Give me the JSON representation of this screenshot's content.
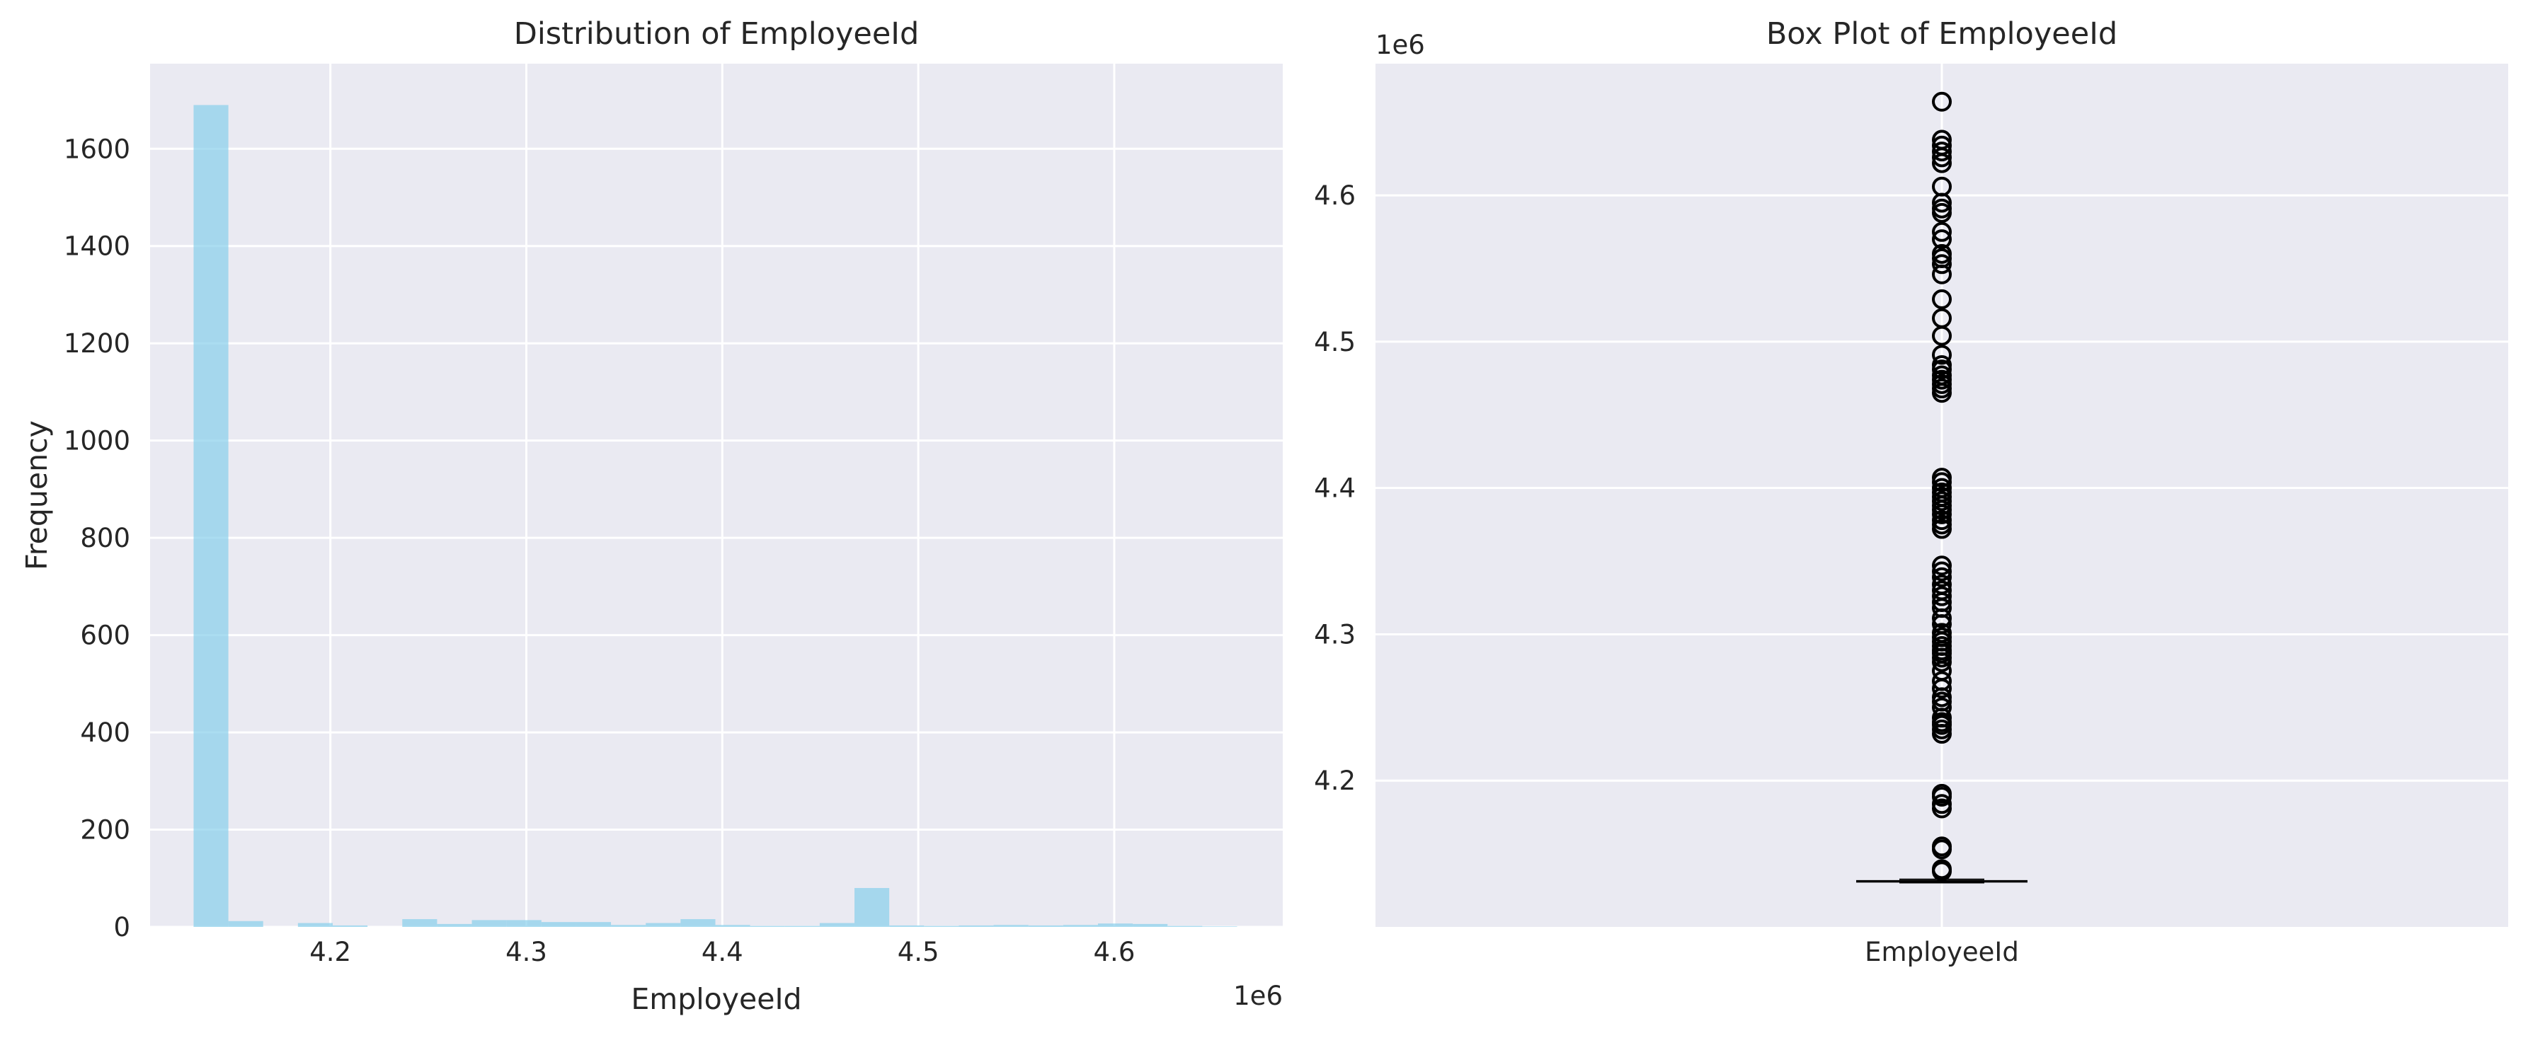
{
  "colors": {
    "background": "#ffffff",
    "axes_facecolor": "#eaeaf2",
    "grid": "#ffffff",
    "hist_bar": "#87ceeb",
    "outlier_edge": "#000000",
    "median": "#000000"
  },
  "chart_data": [
    {
      "type": "bar",
      "title": "Distribution of EmployeeId",
      "xlabel": "EmployeeId",
      "ylabel": "Frequency",
      "x_offset_text": "1e6",
      "x_scale_factor": 1000000,
      "xlim": [
        4108000,
        4686000
      ],
      "ylim": [
        0,
        1775
      ],
      "xticks": [
        4200000,
        4300000,
        4400000,
        4500000,
        4600000
      ],
      "xtick_labels": [
        "4.2",
        "4.3",
        "4.4",
        "4.5",
        "4.6"
      ],
      "yticks": [
        0,
        200,
        400,
        600,
        800,
        1000,
        1200,
        1400,
        1600
      ],
      "ytick_labels": [
        "0",
        "200",
        "400",
        "600",
        "800",
        "1000",
        "1200",
        "1400",
        "1600"
      ],
      "grid": true,
      "bar_alpha": 0.7,
      "bin_start": 4130200,
      "bin_width": 17750,
      "values": [
        1690,
        12,
        0,
        8,
        3,
        0,
        16,
        6,
        14,
        14,
        10,
        10,
        4,
        8,
        16,
        4,
        2,
        2,
        8,
        80,
        3,
        2,
        3,
        4,
        3,
        4,
        7,
        6,
        2,
        1
      ]
    },
    {
      "type": "box",
      "title": "Box Plot of EmployeeId",
      "y_offset_text": "1e6",
      "y_scale_factor": 1000000,
      "ylim": [
        4100000,
        4690000
      ],
      "yticks": [
        4200000,
        4300000,
        4400000,
        4500000,
        4600000
      ],
      "ytick_labels": [
        "4.2",
        "4.3",
        "4.4",
        "4.5",
        "4.6"
      ],
      "xtick_labels": [
        "EmployeeId"
      ],
      "grid": true,
      "box": {
        "whisker_low": 4130200,
        "q1": 4130800,
        "median": 4131100,
        "q3": 4131500,
        "whisker_high": 4132500
      },
      "outliers": [
        4138000,
        4139500,
        4153000,
        4155000,
        4181000,
        4184000,
        4189000,
        4191000,
        4232000,
        4235000,
        4238000,
        4240000,
        4243000,
        4250000,
        4254000,
        4257000,
        4263000,
        4268000,
        4275000,
        4281000,
        4284000,
        4287000,
        4289000,
        4292000,
        4295000,
        4298000,
        4301000,
        4307000,
        4311000,
        4318000,
        4322000,
        4326000,
        4330000,
        4334000,
        4339000,
        4343000,
        4347000,
        4372000,
        4375000,
        4378000,
        4382000,
        4385000,
        4388000,
        4391000,
        4394000,
        4397000,
        4400000,
        4404000,
        4407000,
        4465000,
        4468000,
        4471000,
        4474000,
        4477000,
        4481000,
        4484000,
        4491000,
        4504000,
        4516000,
        4529000,
        4546000,
        4553000,
        4557000,
        4560000,
        4570000,
        4575000,
        4588000,
        4591000,
        4595000,
        4606000,
        4622000,
        4626000,
        4630000,
        4634000,
        4638000,
        4664000
      ]
    }
  ]
}
